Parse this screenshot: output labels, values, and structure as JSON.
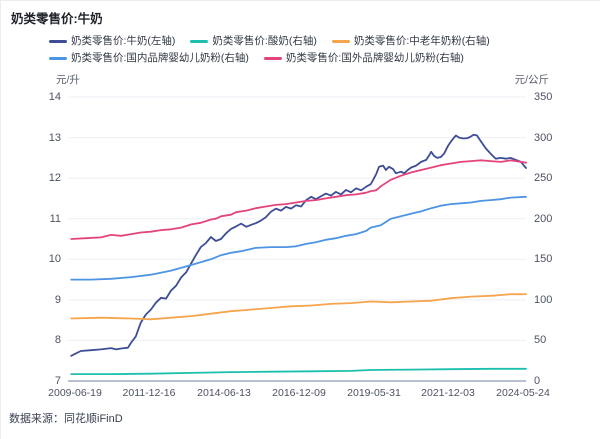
{
  "title": "奶类零售价:牛奶",
  "source": "数据来源：同花顺iFinD",
  "axes": {
    "left_unit": "元/升",
    "right_unit": "元/公斤",
    "left_ticks": [
      "14",
      "13",
      "12",
      "11",
      "10",
      "9",
      "8",
      "7"
    ],
    "right_ticks": [
      "350",
      "300",
      "250",
      "200",
      "150",
      "100",
      "50",
      "0"
    ],
    "x_ticks": [
      "2009-06-19",
      "2011-12-16",
      "2014-06-13",
      "2016-12-09",
      "2019-05-31",
      "2021-12-03",
      "2024-05-24"
    ]
  },
  "colors": {
    "milk": "#3E4E96",
    "yogurt": "#1CBFAE",
    "elder_powder": "#F6A54C",
    "domestic_infant": "#4D94E4",
    "foreign_infant": "#E3447E",
    "grid": "#EDEFF5",
    "axis_line": "#B9C0D0"
  },
  "legend": [
    {
      "id": "milk",
      "label": "奶类零售价:牛奶(左轴)",
      "color": "#3E4E96"
    },
    {
      "id": "yogurt",
      "label": "奶类零售价:酸奶(右轴)",
      "color": "#1CBFAE"
    },
    {
      "id": "elder-powder",
      "label": "奶类零售价:中老年奶粉(右轴)",
      "color": "#F6A54C"
    },
    {
      "id": "domestic-infant",
      "label": "奶类零售价:国内品牌婴幼儿奶粉(右轴)",
      "color": "#4D94E4"
    },
    {
      "id": "foreign-infant",
      "label": "奶类零售价:国外品牌婴幼儿奶粉(右轴)",
      "color": "#E3447E"
    }
  ],
  "chart_data": {
    "type": "line",
    "title": "奶类零售价:牛奶",
    "x_range": [
      "2009-06-19",
      "2024-05-24"
    ],
    "x_encoding": "fraction of date range 2009-06-19 .. 2024-05-24",
    "x_tick_labels": [
      "2009-06-19",
      "2011-12-16",
      "2014-06-13",
      "2016-12-09",
      "2019-05-31",
      "2021-12-03",
      "2024-05-24"
    ],
    "left_axis": {
      "label": "元/升",
      "range": [
        7,
        14
      ]
    },
    "right_axis": {
      "label": "元/公斤",
      "range": [
        0,
        350
      ]
    },
    "grid": "horizontal",
    "legend_position": "top",
    "series": [
      {
        "id": "milk",
        "name": "奶类零售价:牛奶(左轴)",
        "axis": "left",
        "color": "#3E4E96",
        "points": [
          [
            0.007,
            7.62
          ],
          [
            0.028,
            7.74
          ],
          [
            0.05,
            7.76
          ],
          [
            0.072,
            7.78
          ],
          [
            0.094,
            7.81
          ],
          [
            0.105,
            7.78
          ],
          [
            0.116,
            7.8
          ],
          [
            0.131,
            7.82
          ],
          [
            0.138,
            7.95
          ],
          [
            0.148,
            8.1
          ],
          [
            0.159,
            8.44
          ],
          [
            0.17,
            8.64
          ],
          [
            0.181,
            8.76
          ],
          [
            0.192,
            8.93
          ],
          [
            0.203,
            9.05
          ],
          [
            0.214,
            9.03
          ],
          [
            0.225,
            9.23
          ],
          [
            0.236,
            9.35
          ],
          [
            0.247,
            9.55
          ],
          [
            0.258,
            9.68
          ],
          [
            0.269,
            9.9
          ],
          [
            0.279,
            10.1
          ],
          [
            0.29,
            10.3
          ],
          [
            0.301,
            10.4
          ],
          [
            0.312,
            10.55
          ],
          [
            0.323,
            10.45
          ],
          [
            0.334,
            10.5
          ],
          [
            0.345,
            10.64
          ],
          [
            0.356,
            10.75
          ],
          [
            0.367,
            10.81
          ],
          [
            0.378,
            10.88
          ],
          [
            0.389,
            10.8
          ],
          [
            0.4,
            10.85
          ],
          [
            0.41,
            10.89
          ],
          [
            0.421,
            10.95
          ],
          [
            0.432,
            11.04
          ],
          [
            0.443,
            11.17
          ],
          [
            0.454,
            11.25
          ],
          [
            0.465,
            11.2
          ],
          [
            0.476,
            11.29
          ],
          [
            0.487,
            11.25
          ],
          [
            0.498,
            11.33
          ],
          [
            0.509,
            11.3
          ],
          [
            0.52,
            11.46
          ],
          [
            0.531,
            11.54
          ],
          [
            0.541,
            11.48
          ],
          [
            0.552,
            11.55
          ],
          [
            0.563,
            11.62
          ],
          [
            0.574,
            11.57
          ],
          [
            0.585,
            11.66
          ],
          [
            0.596,
            11.6
          ],
          [
            0.607,
            11.71
          ],
          [
            0.618,
            11.65
          ],
          [
            0.629,
            11.75
          ],
          [
            0.64,
            11.7
          ],
          [
            0.651,
            11.79
          ],
          [
            0.661,
            11.85
          ],
          [
            0.666,
            11.95
          ],
          [
            0.673,
            12.1
          ],
          [
            0.679,
            12.28
          ],
          [
            0.688,
            12.31
          ],
          [
            0.694,
            12.2
          ],
          [
            0.701,
            12.28
          ],
          [
            0.71,
            12.22
          ],
          [
            0.716,
            12.12
          ],
          [
            0.727,
            12.16
          ],
          [
            0.734,
            12.12
          ],
          [
            0.742,
            12.2
          ],
          [
            0.749,
            12.26
          ],
          [
            0.76,
            12.31
          ],
          [
            0.771,
            12.4
          ],
          [
            0.782,
            12.45
          ],
          [
            0.788,
            12.55
          ],
          [
            0.793,
            12.65
          ],
          [
            0.799,
            12.55
          ],
          [
            0.806,
            12.5
          ],
          [
            0.814,
            12.52
          ],
          [
            0.821,
            12.6
          ],
          [
            0.83,
            12.8
          ],
          [
            0.836,
            12.9
          ],
          [
            0.843,
            13.0
          ],
          [
            0.847,
            13.05
          ],
          [
            0.854,
            13.0
          ],
          [
            0.862,
            12.98
          ],
          [
            0.869,
            12.98
          ],
          [
            0.875,
            13.0
          ],
          [
            0.88,
            13.03
          ],
          [
            0.886,
            13.07
          ],
          [
            0.893,
            13.05
          ],
          [
            0.902,
            12.9
          ],
          [
            0.908,
            12.8
          ],
          [
            0.913,
            12.72
          ],
          [
            0.919,
            12.65
          ],
          [
            0.923,
            12.6
          ],
          [
            0.93,
            12.52
          ],
          [
            0.934,
            12.48
          ],
          [
            0.945,
            12.5
          ],
          [
            0.956,
            12.48
          ],
          [
            0.967,
            12.5
          ],
          [
            0.978,
            12.45
          ],
          [
            0.985,
            12.42
          ],
          [
            0.989,
            12.4
          ],
          [
            0.996,
            12.3
          ],
          [
            1.0,
            12.25
          ]
        ]
      },
      {
        "id": "yogurt",
        "name": "奶类零售价:酸奶(右轴)",
        "axis": "right",
        "color": "#1CBFAE",
        "points": [
          [
            0.007,
            8.5
          ],
          [
            0.094,
            8.5
          ],
          [
            0.181,
            9
          ],
          [
            0.269,
            10
          ],
          [
            0.356,
            11
          ],
          [
            0.443,
            11.5
          ],
          [
            0.531,
            12
          ],
          [
            0.618,
            12.5
          ],
          [
            0.661,
            13.5
          ],
          [
            0.749,
            14
          ],
          [
            0.836,
            14.5
          ],
          [
            0.923,
            15
          ],
          [
            1.0,
            15
          ]
        ]
      },
      {
        "id": "elder-powder",
        "name": "奶类零售价:中老年奶粉(右轴)",
        "axis": "right",
        "color": "#F6A54C",
        "points": [
          [
            0.007,
            77
          ],
          [
            0.072,
            78
          ],
          [
            0.138,
            77
          ],
          [
            0.181,
            76
          ],
          [
            0.225,
            78
          ],
          [
            0.269,
            80
          ],
          [
            0.312,
            83
          ],
          [
            0.356,
            86
          ],
          [
            0.4,
            88
          ],
          [
            0.443,
            90
          ],
          [
            0.487,
            92
          ],
          [
            0.531,
            93
          ],
          [
            0.574,
            95
          ],
          [
            0.618,
            96
          ],
          [
            0.661,
            98
          ],
          [
            0.705,
            97
          ],
          [
            0.749,
            98
          ],
          [
            0.793,
            99
          ],
          [
            0.836,
            102
          ],
          [
            0.88,
            104
          ],
          [
            0.923,
            105
          ],
          [
            0.967,
            107
          ],
          [
            1.0,
            107
          ]
        ]
      },
      {
        "id": "domestic-infant",
        "name": "奶类零售价:国内品牌婴幼儿奶粉(右轴)",
        "axis": "right",
        "color": "#4D94E4",
        "points": [
          [
            0.007,
            125
          ],
          [
            0.05,
            125
          ],
          [
            0.094,
            126
          ],
          [
            0.138,
            128
          ],
          [
            0.181,
            131
          ],
          [
            0.225,
            136
          ],
          [
            0.269,
            143
          ],
          [
            0.312,
            150
          ],
          [
            0.334,
            155
          ],
          [
            0.356,
            158
          ],
          [
            0.378,
            160
          ],
          [
            0.41,
            164
          ],
          [
            0.443,
            165
          ],
          [
            0.476,
            165
          ],
          [
            0.498,
            166
          ],
          [
            0.52,
            169
          ],
          [
            0.541,
            171
          ],
          [
            0.563,
            174
          ],
          [
            0.585,
            176
          ],
          [
            0.607,
            179
          ],
          [
            0.629,
            181
          ],
          [
            0.651,
            185
          ],
          [
            0.661,
            189
          ],
          [
            0.683,
            192
          ],
          [
            0.705,
            200
          ],
          [
            0.727,
            203
          ],
          [
            0.749,
            206
          ],
          [
            0.771,
            209
          ],
          [
            0.793,
            213
          ],
          [
            0.814,
            216
          ],
          [
            0.836,
            218
          ],
          [
            0.858,
            219
          ],
          [
            0.88,
            220
          ],
          [
            0.902,
            222
          ],
          [
            0.923,
            223
          ],
          [
            0.945,
            224
          ],
          [
            0.967,
            226
          ],
          [
            1.0,
            227
          ]
        ]
      },
      {
        "id": "foreign-infant",
        "name": "奶类零售价:国外品牌婴幼儿奶粉(右轴)",
        "axis": "right",
        "color": "#E3447E",
        "points": [
          [
            0.007,
            175
          ],
          [
            0.039,
            176
          ],
          [
            0.072,
            177
          ],
          [
            0.094,
            180
          ],
          [
            0.116,
            179
          ],
          [
            0.138,
            181
          ],
          [
            0.159,
            183
          ],
          [
            0.181,
            184
          ],
          [
            0.203,
            186
          ],
          [
            0.225,
            187
          ],
          [
            0.247,
            189
          ],
          [
            0.269,
            193
          ],
          [
            0.29,
            195
          ],
          [
            0.312,
            199
          ],
          [
            0.323,
            200
          ],
          [
            0.334,
            203
          ],
          [
            0.356,
            205
          ],
          [
            0.367,
            208
          ],
          [
            0.389,
            210
          ],
          [
            0.41,
            213
          ],
          [
            0.432,
            215
          ],
          [
            0.454,
            217
          ],
          [
            0.476,
            218
          ],
          [
            0.498,
            220
          ],
          [
            0.52,
            222
          ],
          [
            0.541,
            223
          ],
          [
            0.563,
            225
          ],
          [
            0.585,
            227
          ],
          [
            0.607,
            229
          ],
          [
            0.629,
            230
          ],
          [
            0.651,
            232
          ],
          [
            0.661,
            234
          ],
          [
            0.673,
            235
          ],
          [
            0.683,
            240
          ],
          [
            0.705,
            248
          ],
          [
            0.727,
            253
          ],
          [
            0.749,
            257
          ],
          [
            0.771,
            260
          ],
          [
            0.793,
            263
          ],
          [
            0.814,
            266
          ],
          [
            0.836,
            268
          ],
          [
            0.858,
            270
          ],
          [
            0.88,
            271
          ],
          [
            0.902,
            272
          ],
          [
            0.923,
            271
          ],
          [
            0.945,
            270
          ],
          [
            0.967,
            272
          ],
          [
            0.989,
            270
          ],
          [
            1.0,
            269
          ]
        ]
      }
    ]
  }
}
